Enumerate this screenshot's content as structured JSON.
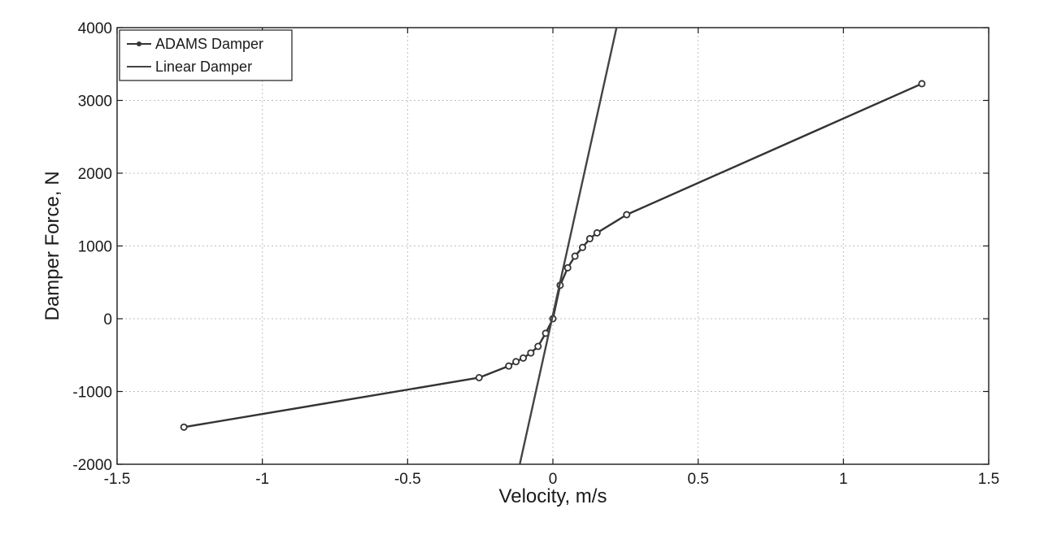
{
  "chart_data": {
    "type": "line",
    "title": "",
    "xlabel": "Velocity, m/s",
    "ylabel": "Damper Force, N",
    "xlim": [
      -1.5,
      1.5
    ],
    "ylim": [
      -2000,
      4000
    ],
    "xticks": [
      -1.5,
      -1,
      -0.5,
      0,
      0.5,
      1,
      1.5
    ],
    "xtick_labels": [
      "-1.5",
      "-1",
      "-0.5",
      "0",
      "0.5",
      "1",
      "1.5"
    ],
    "yticks": [
      -2000,
      -1000,
      0,
      1000,
      2000,
      3000,
      4000
    ],
    "ytick_labels": [
      "-2000",
      "-1000",
      "0",
      "1000",
      "2000",
      "3000",
      "4000"
    ],
    "grid": true,
    "legend_position": "top-left",
    "series": [
      {
        "name": "ADAMS Damper",
        "color": "#333333",
        "marker": "circle",
        "x": [
          -1.27,
          -0.254,
          -0.152,
          -0.127,
          -0.102,
          -0.076,
          -0.051,
          -0.025,
          0,
          0.025,
          0.051,
          0.076,
          0.102,
          0.127,
          0.152,
          0.254,
          1.27
        ],
        "y": [
          -1490,
          -810,
          -650,
          -590,
          -540,
          -470,
          -380,
          -200,
          0,
          460,
          700,
          860,
          980,
          1100,
          1180,
          1430,
          3230
        ]
      },
      {
        "name": "Linear Damper",
        "color": "#444444",
        "marker": "none",
        "x": [
          -0.114,
          0.219
        ],
        "y": [
          -2000,
          4000
        ]
      }
    ]
  }
}
